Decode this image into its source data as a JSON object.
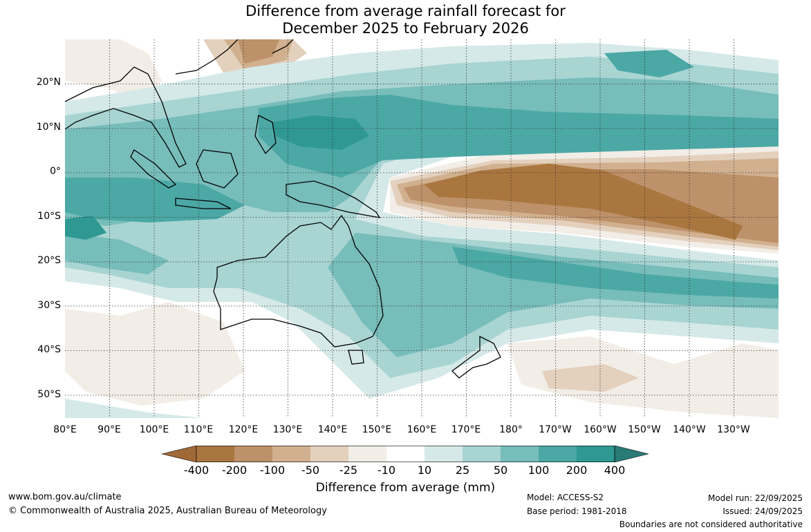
{
  "title": {
    "line1": "Difference from average rainfall forecast for",
    "line2": "December 2025 to February 2026"
  },
  "map": {
    "lat_labels": [
      "20°N",
      "10°N",
      "0°",
      "10°S",
      "20°S",
      "30°S",
      "40°S",
      "50°S"
    ],
    "lon_labels": [
      "80°E",
      "90°E",
      "100°E",
      "110°E",
      "120°E",
      "130°E",
      "140°E",
      "150°E",
      "160°E",
      "170°E",
      "180°",
      "170°W",
      "160°W",
      "150°W",
      "140°W",
      "130°W"
    ]
  },
  "colorbar": {
    "title": "Difference from average (mm)",
    "tick_labels": [
      "-400",
      "-200",
      "-100",
      "-50",
      "-25",
      "-10",
      "10",
      "25",
      "50",
      "100",
      "200",
      "400"
    ],
    "colors": [
      "#a06a38",
      "#aa763f",
      "#bd9169",
      "#d1b08f",
      "#e3d0bd",
      "#f2ede6",
      "#ffffff",
      "#d5e9e8",
      "#a8d4d2",
      "#77bdba",
      "#4ba8a5",
      "#2f9892",
      "#2a7a76"
    ]
  },
  "footer": {
    "website": "www.bom.gov.au/climate",
    "copyright": "© Commonwealth of Australia 2025, Australian Bureau of Meteorology",
    "model": "Model: ACCESS-S2",
    "base_period": "Base period: 1981-2018",
    "model_run": "Model run: 22/09/2025",
    "issued": "Issued: 24/09/2025",
    "disclaimer": "Boundaries are not considered authoritative"
  }
}
